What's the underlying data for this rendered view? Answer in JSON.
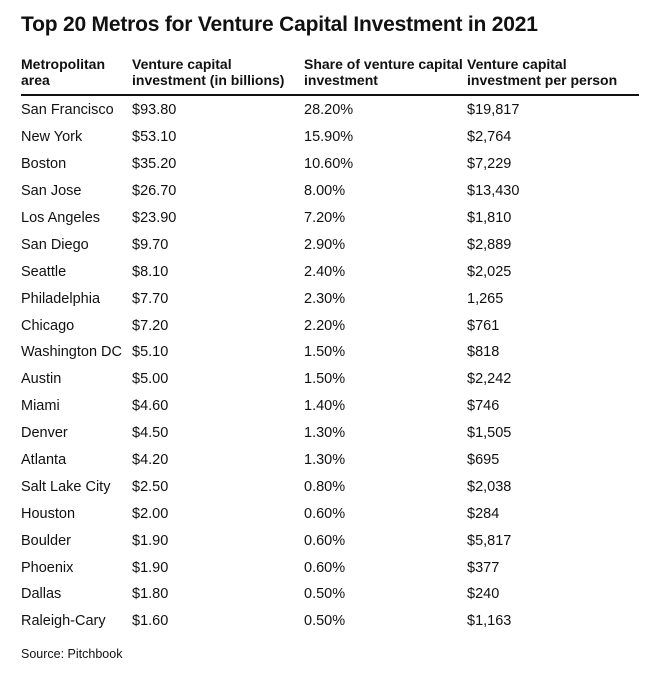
{
  "title": "Top 20 Metros for Venture Capital Investment in 2021",
  "columns": [
    "Metropolitan area",
    "Venture capital investment (in billions)",
    "Share of venture capital investment",
    "Venture capital investment per person"
  ],
  "rows": [
    [
      "San Francisco",
      "$93.80",
      "28.20%",
      "$19,817"
    ],
    [
      "New York",
      "$53.10",
      "15.90%",
      "$2,764"
    ],
    [
      "Boston",
      "$35.20",
      "10.60%",
      "$7,229"
    ],
    [
      "San Jose",
      "$26.70",
      "8.00%",
      "$13,430"
    ],
    [
      "Los Angeles",
      "$23.90",
      "7.20%",
      "$1,810"
    ],
    [
      "San Diego",
      "$9.70",
      "2.90%",
      "$2,889"
    ],
    [
      "Seattle",
      "$8.10",
      "2.40%",
      "$2,025"
    ],
    [
      "Philadelphia",
      "$7.70",
      "2.30%",
      "1,265"
    ],
    [
      "Chicago",
      "$7.20",
      "2.20%",
      "$761"
    ],
    [
      "Washington DC",
      "$5.10",
      "1.50%",
      "$818"
    ],
    [
      "Austin",
      "$5.00",
      "1.50%",
      "$2,242"
    ],
    [
      "Miami",
      "$4.60",
      "1.40%",
      "$746"
    ],
    [
      "Denver",
      "$4.50",
      "1.30%",
      "$1,505"
    ],
    [
      "Atlanta",
      "$4.20",
      "1.30%",
      "$695"
    ],
    [
      "Salt Lake City",
      "$2.50",
      "0.80%",
      "$2,038"
    ],
    [
      "Houston",
      "$2.00",
      "0.60%",
      "$284"
    ],
    [
      "Boulder",
      "$1.90",
      "0.60%",
      "$5,817"
    ],
    [
      "Phoenix",
      "$1.90",
      "0.60%",
      "$377"
    ],
    [
      "Dallas",
      "$1.80",
      "0.50%",
      "$240"
    ],
    [
      "Raleigh-Cary",
      "$1.60",
      "0.50%",
      "$1,163"
    ]
  ],
  "source": "Source: Pitchbook"
}
